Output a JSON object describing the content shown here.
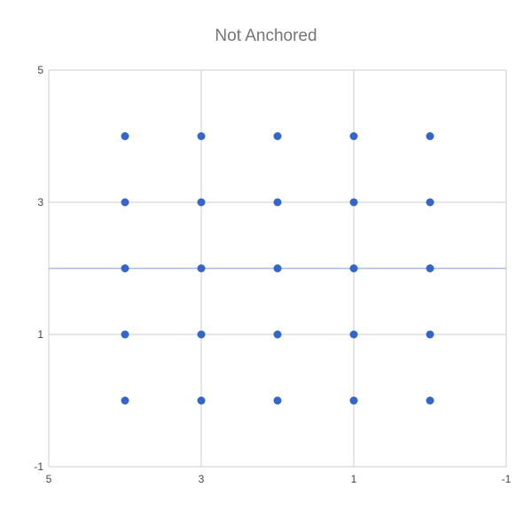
{
  "chart_data": {
    "type": "scatter",
    "title": "Not Anchored",
    "xlabel": "",
    "ylabel": "",
    "xlim": [
      5,
      -1
    ],
    "ylim": [
      -1,
      5
    ],
    "x_ticks": [
      "5",
      "3",
      "1",
      "-1"
    ],
    "y_ticks": [
      "-1",
      "1",
      "3",
      "5"
    ],
    "x_axis_reversed": true,
    "grid": true,
    "reference_line": {
      "orientation": "horizontal",
      "y": 2,
      "color": "#a4bde8"
    },
    "series": [
      {
        "color": "#3366cc",
        "points": [
          [
            4,
            4
          ],
          [
            3,
            4
          ],
          [
            2,
            4
          ],
          [
            1,
            4
          ],
          [
            0,
            4
          ],
          [
            4,
            3
          ],
          [
            3,
            3
          ],
          [
            2,
            3
          ],
          [
            1,
            3
          ],
          [
            0,
            3
          ],
          [
            4,
            2
          ],
          [
            3,
            2
          ],
          [
            2,
            2
          ],
          [
            1,
            2
          ],
          [
            0,
            2
          ],
          [
            4,
            1
          ],
          [
            3,
            1
          ],
          [
            2,
            1
          ],
          [
            1,
            1
          ],
          [
            0,
            1
          ],
          [
            4,
            0
          ],
          [
            3,
            0
          ],
          [
            2,
            0
          ],
          [
            1,
            0
          ],
          [
            0,
            0
          ]
        ]
      }
    ]
  }
}
